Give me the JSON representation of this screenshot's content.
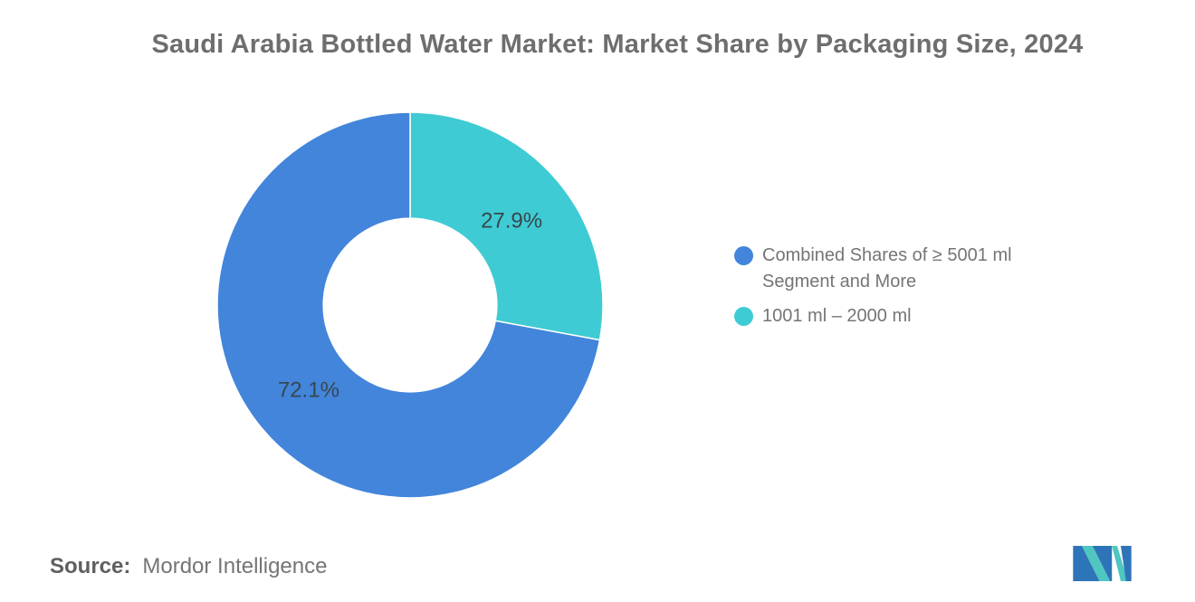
{
  "page": {
    "background": "#FFFFFF"
  },
  "chart_data": {
    "type": "donut",
    "title": "Saudi Arabia Bottled Water Market: Market Share by Packaging Size, 2024",
    "unit": "%",
    "start_angle_deg": 0,
    "direction": "clockwise",
    "inner_radius_ratio": 0.45,
    "label_radius_ratio": 0.685,
    "slice_border_color": "#FFFFFF",
    "slice_label_color": "#37474F",
    "segments": [
      {
        "name": "1001 ml – 2000 ml",
        "value": 27.9,
        "label": "27.9%",
        "color": "#3FCBD3"
      },
      {
        "name": "Combined Shares of ≥ 5001 ml Segment and More",
        "value": 72.1,
        "label": "72.1%",
        "color": "#4285DB"
      }
    ]
  },
  "legend": {
    "text_color": "#757575",
    "items": [
      {
        "lines": [
          "Combined Shares of ≥ 5001 ml",
          "Segment and More"
        ],
        "color": "#4285DB"
      },
      {
        "lines": [
          "1001 ml – 2000 ml"
        ],
        "color": "#3FCBD3"
      }
    ]
  },
  "footer": {
    "source_label": "Source:",
    "source_value": "Mordor Intelligence"
  },
  "logo": {
    "name": "Mordor Intelligence logo mark",
    "blue": "#2E74B8",
    "teal": "#4FC6C0"
  }
}
